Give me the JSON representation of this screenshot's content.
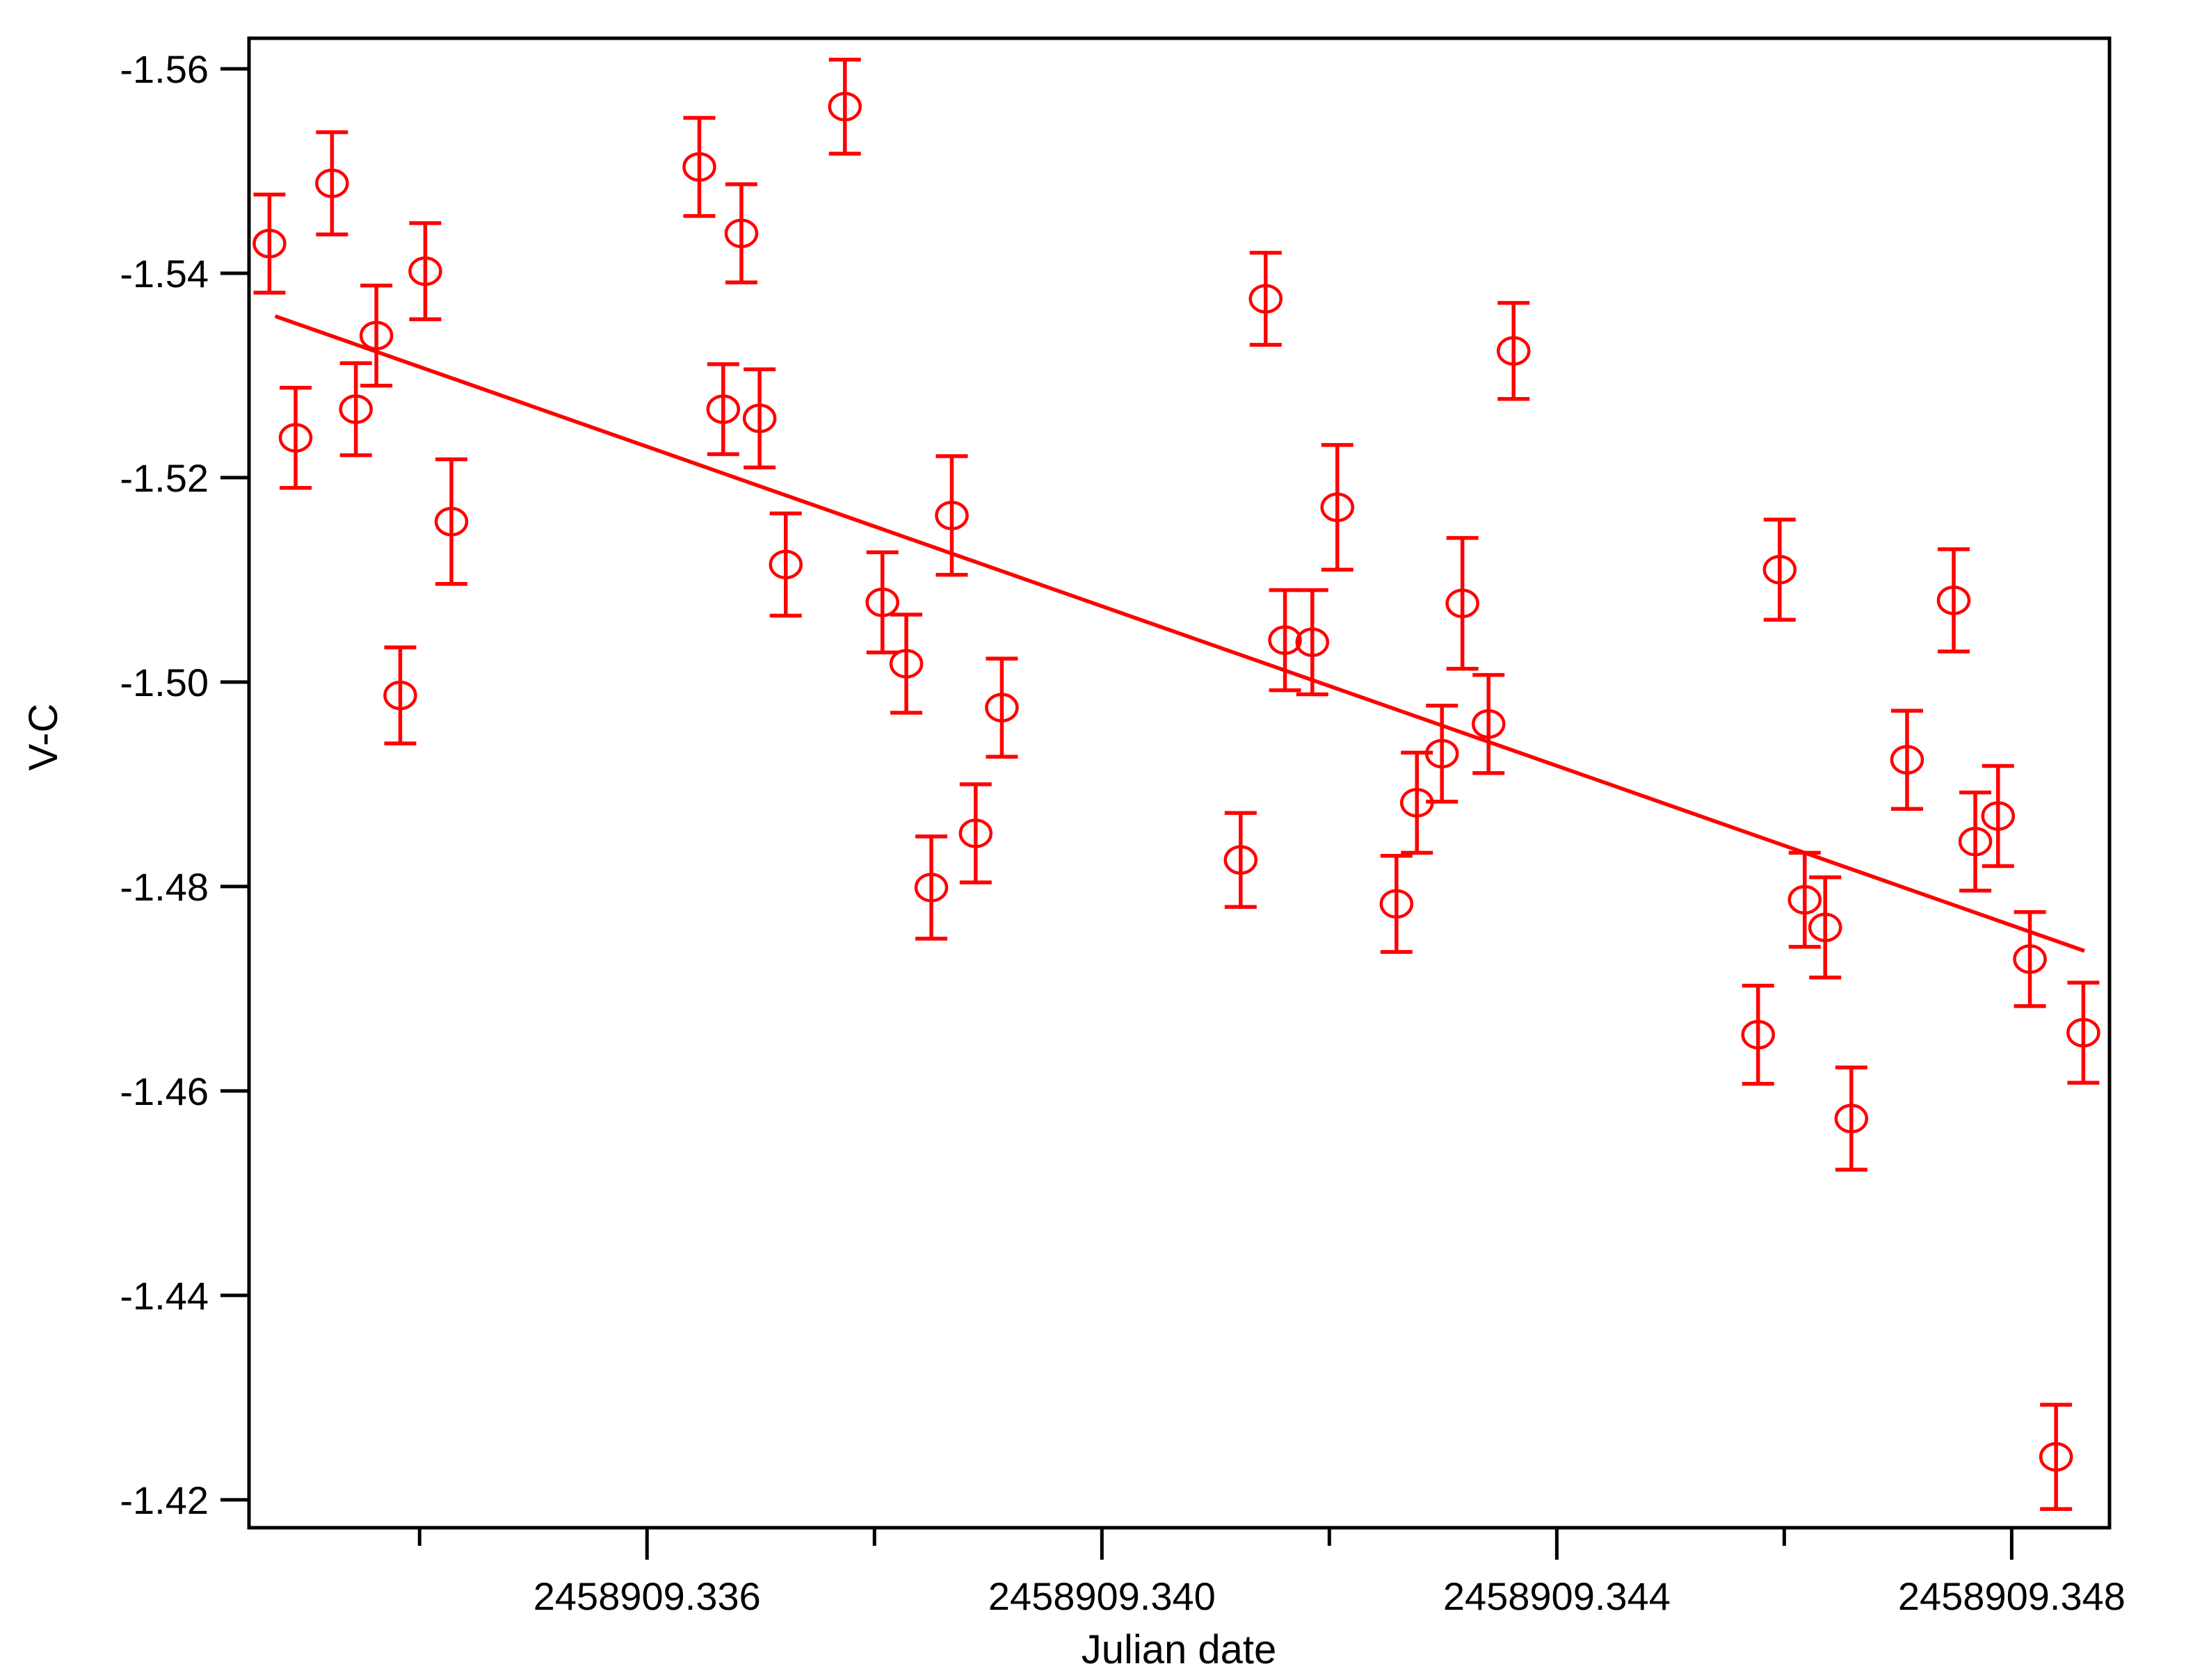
{
  "colors": {
    "series": "#ff0000",
    "axes": "#000000",
    "background": "#ffffff"
  },
  "chart_data": {
    "type": "scatter",
    "title": "",
    "xlabel": "Julian date",
    "ylabel": "V-C",
    "marker": "open-circle-with-error-bars",
    "grid": false,
    "legend": "none",
    "y_axis_inverted": true,
    "xlim": [
      2458909.3325,
      2458909.34886
    ],
    "ylim": [
      -1.56299,
      -1.41727
    ],
    "x_ticks": [
      {
        "value": 2458909.336,
        "label": "2458909.336"
      },
      {
        "value": 2458909.34,
        "label": "2458909.340"
      },
      {
        "value": 2458909.344,
        "label": "2458909.344"
      },
      {
        "value": 2458909.348,
        "label": "2458909.348"
      }
    ],
    "x_minor_ticks": [
      2458909.334,
      2458909.338,
      2458909.342,
      2458909.346
    ],
    "y_ticks": [
      {
        "value": -1.56,
        "label": "-1.56"
      },
      {
        "value": -1.54,
        "label": "-1.54"
      },
      {
        "value": -1.52,
        "label": "-1.52"
      },
      {
        "value": -1.5,
        "label": "-1.50"
      },
      {
        "value": -1.48,
        "label": "-1.48"
      },
      {
        "value": -1.46,
        "label": "-1.46"
      },
      {
        "value": -1.44,
        "label": "-1.44"
      },
      {
        "value": -1.42,
        "label": "-1.42"
      }
    ],
    "points": [
      {
        "x": 2458909.33268,
        "y": -1.5429,
        "err": 0.0048
      },
      {
        "x": 2458909.33291,
        "y": -1.5239,
        "err": 0.0049
      },
      {
        "x": 2458909.33323,
        "y": -1.5488,
        "err": 0.005
      },
      {
        "x": 2458909.33344,
        "y": -1.5267,
        "err": 0.0045
      },
      {
        "x": 2458909.33362,
        "y": -1.5339,
        "err": 0.0049
      },
      {
        "x": 2458909.33383,
        "y": -1.4987,
        "err": 0.0047
      },
      {
        "x": 2458909.33405,
        "y": -1.5402,
        "err": 0.0047
      },
      {
        "x": 2458909.33428,
        "y": -1.5157,
        "err": 0.0061
      },
      {
        "x": 2458909.33646,
        "y": -1.5504,
        "err": 0.0048
      },
      {
        "x": 2458909.33667,
        "y": -1.5267,
        "err": 0.0044
      },
      {
        "x": 2458909.33683,
        "y": -1.5439,
        "err": 0.0048
      },
      {
        "x": 2458909.33699,
        "y": -1.5258,
        "err": 0.0048
      },
      {
        "x": 2458909.33722,
        "y": -1.5115,
        "err": 0.005
      },
      {
        "x": 2458909.33774,
        "y": -1.5563,
        "err": 0.0046
      },
      {
        "x": 2458909.33807,
        "y": -1.5078,
        "err": 0.0049
      },
      {
        "x": 2458909.33828,
        "y": -1.5018,
        "err": 0.0048
      },
      {
        "x": 2458909.3385,
        "y": -1.4799,
        "err": 0.005
      },
      {
        "x": 2458909.33868,
        "y": -1.5163,
        "err": 0.0058
      },
      {
        "x": 2458909.33889,
        "y": -1.4852,
        "err": 0.0048
      },
      {
        "x": 2458909.33912,
        "y": -1.4975,
        "err": 0.0048
      },
      {
        "x": 2458909.34122,
        "y": -1.4826,
        "err": 0.0046
      },
      {
        "x": 2458909.34144,
        "y": -1.5375,
        "err": 0.0045
      },
      {
        "x": 2458909.34161,
        "y": -1.5041,
        "err": 0.0049
      },
      {
        "x": 2458909.34185,
        "y": -1.5039,
        "err": 0.0051
      },
      {
        "x": 2458909.34207,
        "y": -1.5171,
        "err": 0.0061
      },
      {
        "x": 2458909.34259,
        "y": -1.4783,
        "err": 0.0047
      },
      {
        "x": 2458909.34277,
        "y": -1.4882,
        "err": 0.0049
      },
      {
        "x": 2458909.34299,
        "y": -1.493,
        "err": 0.0047
      },
      {
        "x": 2458909.34317,
        "y": -1.5077,
        "err": 0.0064
      },
      {
        "x": 2458909.3434,
        "y": -1.4959,
        "err": 0.0048
      },
      {
        "x": 2458909.34362,
        "y": -1.5324,
        "err": 0.0047
      },
      {
        "x": 2458909.34577,
        "y": -1.4655,
        "err": 0.0048
      },
      {
        "x": 2458909.34596,
        "y": -1.511,
        "err": 0.0049
      },
      {
        "x": 2458909.34618,
        "y": -1.4787,
        "err": 0.0046
      },
      {
        "x": 2458909.34636,
        "y": -1.476,
        "err": 0.0049
      },
      {
        "x": 2458909.34659,
        "y": -1.4573,
        "err": 0.005
      },
      {
        "x": 2458909.34708,
        "y": -1.4924,
        "err": 0.0048
      },
      {
        "x": 2458909.34749,
        "y": -1.508,
        "err": 0.005
      },
      {
        "x": 2458909.34768,
        "y": -1.4844,
        "err": 0.0048
      },
      {
        "x": 2458909.34788,
        "y": -1.4869,
        "err": 0.0049
      },
      {
        "x": 2458909.34816,
        "y": -1.4729,
        "err": 0.0046
      },
      {
        "x": 2458909.34839,
        "y": -1.4242,
        "err": 0.0051
      },
      {
        "x": 2458909.34863,
        "y": -1.4657,
        "err": 0.0049
      }
    ],
    "trend_line": {
      "x1": 2458909.33273,
      "y1": -1.5358,
      "x2": 2458909.34864,
      "y2": -1.4737
    }
  }
}
